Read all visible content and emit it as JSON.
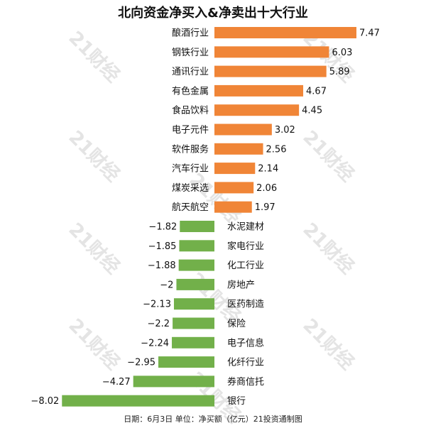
{
  "title": "北向资金净买入&净卖出十大行业",
  "footer": "日期：6月3日 单位：净买额（亿元）21投资通制图",
  "watermark": "21财经",
  "colors": {
    "positive": "#f08537",
    "negative": "#72b04a"
  },
  "chart_data": {
    "type": "bar",
    "orientation": "horizontal",
    "title": "北向资金净买入&净卖出十大行业",
    "unit": "亿元",
    "categories": [
      "酿酒行业",
      "钢铁行业",
      "通讯行业",
      "有色金属",
      "食品饮料",
      "电子元件",
      "软件服务",
      "汽车行业",
      "煤炭采选",
      "航天航空",
      "水泥建材",
      "家电行业",
      "化工行业",
      "房地产",
      "医药制造",
      "保险",
      "电子信息",
      "化纤行业",
      "券商信托",
      "银行"
    ],
    "values": [
      7.47,
      6.03,
      5.89,
      4.67,
      4.45,
      3.02,
      2.56,
      2.14,
      2.06,
      1.97,
      -1.82,
      -1.85,
      -1.88,
      -2,
      -2.13,
      -2.2,
      -2.24,
      -2.95,
      -4.27,
      -8.02
    ],
    "value_labels": [
      "7.47",
      "6.03",
      "5.89",
      "4.67",
      "4.45",
      "3.02",
      "2.56",
      "2.14",
      "2.06",
      "1.97",
      "−1.82",
      "−1.85",
      "−1.88",
      "−2",
      "−2.13",
      "−2.2",
      "−2.24",
      "−2.95",
      "−4.27",
      "−8.02"
    ],
    "xlim": [
      -8.02,
      7.47
    ],
    "grid": false,
    "legend": "none"
  }
}
